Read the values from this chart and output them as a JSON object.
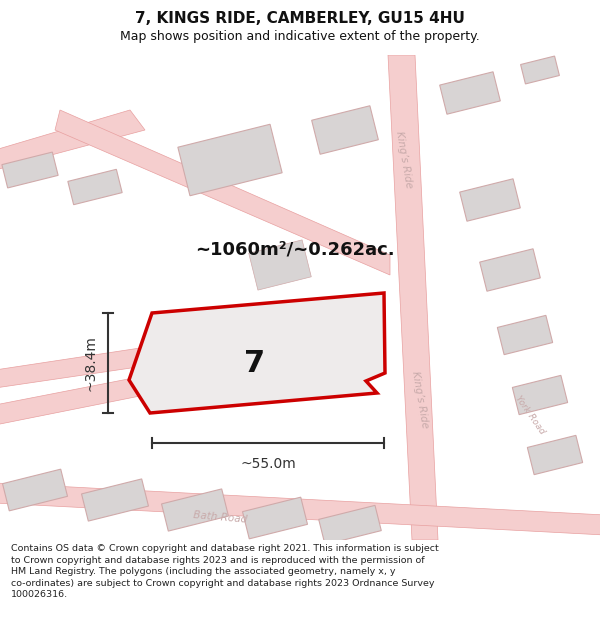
{
  "title": "7, KINGS RIDE, CAMBERLEY, GU15 4HU",
  "subtitle": "Map shows position and indicative extent of the property.",
  "area_text": "~1060m²/~0.262ac.",
  "label_number": "7",
  "dim_width": "~55.0m",
  "dim_height": "~38.4m",
  "road_label_1": "King’s Ride",
  "road_label_2": "King’s Ride",
  "road_label_bath": "Bath Road",
  "road_label_york": "York Road",
  "footer_text": "Contains OS data © Crown copyright and database right 2021. This information is subject\nto Crown copyright and database rights 2023 and is reproduced with the permission of\nHM Land Registry. The polygons (including the associated geometry, namely x, y\nco-ordinates) are subject to Crown copyright and database rights 2023 Ordnance Survey\n100026316.",
  "map_bg": "#faf8f8",
  "plot_fill": "#eeebeb",
  "plot_outline": "#cc0000",
  "road_fill": "#f5cece",
  "road_edge": "#e8a0a0",
  "building_fill": "#d8d4d4",
  "building_edge": "#d0aaaa",
  "dim_color": "#333333",
  "text_color": "#111111",
  "road_text_color": "#c8aaaa",
  "footer_color": "#222222",
  "white": "#ffffff"
}
